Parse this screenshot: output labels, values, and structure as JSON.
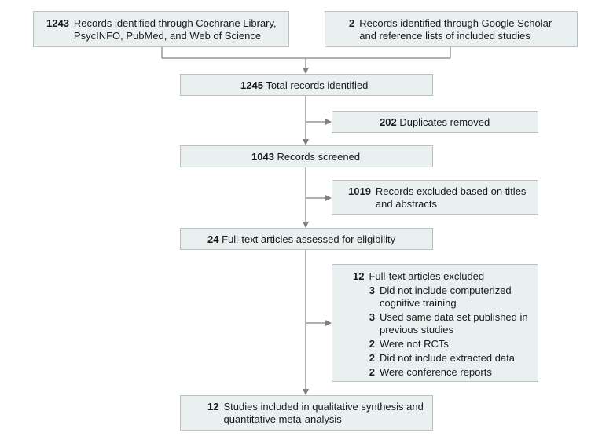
{
  "identified_db": {
    "count": "1243",
    "text": "Records identified through Cochrane Library, PsycINFO, PubMed, and Web of Science"
  },
  "identified_other": {
    "count": "2",
    "text": "Records identified through Google Scholar and  reference lists of included studies"
  },
  "total": {
    "count": "1245",
    "text": "Total records identified"
  },
  "duplicates": {
    "count": "202",
    "text": "Duplicates removed"
  },
  "screened": {
    "count": "1043",
    "text": "Records screened"
  },
  "excluded_titles": {
    "count": "1019",
    "text": "Records excluded based on titles and abstracts"
  },
  "fulltext": {
    "count": "24",
    "text": "Full-text articles assessed for eligibility"
  },
  "fulltext_excluded": {
    "count": "12",
    "text": "Full-text articles excluded",
    "reasons": [
      {
        "count": "3",
        "text": "Did not include computerized cognitive training"
      },
      {
        "count": "3",
        "text": "Used same data set published in previous studies"
      },
      {
        "count": "2",
        "text": "Were not RCTs"
      },
      {
        "count": "2",
        "text": "Did not include extracted data"
      },
      {
        "count": "2",
        "text": "Were conference reports"
      }
    ]
  },
  "included": {
    "count": "12",
    "text": "Studies included in qualitative synthesis and quantitative meta-analysis"
  },
  "colors": {
    "box_fill": "#eaf0f0",
    "box_border": "#b9c2c3",
    "line": "#808080"
  }
}
